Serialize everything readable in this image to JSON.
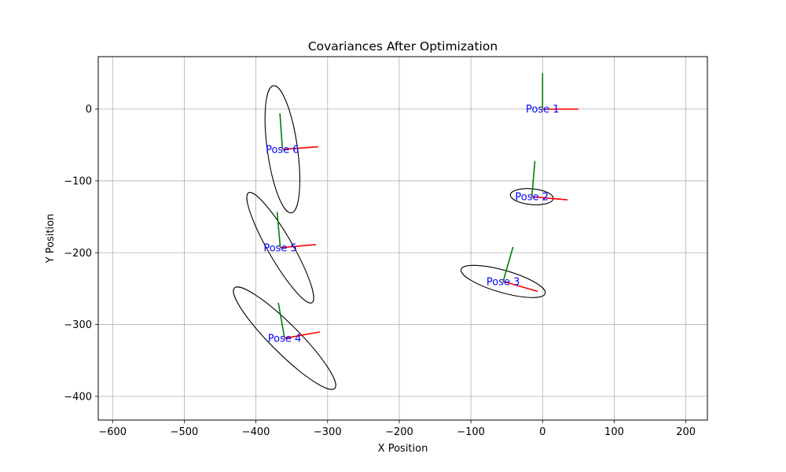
{
  "chart_data": {
    "type": "scatter",
    "title": "Covariances After Optimization",
    "xlabel": "X Position",
    "ylabel": "Y Position",
    "xlim": [
      -620,
      230
    ],
    "ylim": [
      -433,
      73
    ],
    "xticks": [
      -600,
      -500,
      -400,
      -300,
      -200,
      -100,
      0,
      100,
      200
    ],
    "yticks": [
      -400,
      -300,
      -200,
      -100,
      0
    ],
    "grid": true,
    "colors": {
      "x_axis_arrow": "#ff0000",
      "y_axis_arrow": "#008000",
      "ellipse": "#000000",
      "label": "#0000ff",
      "grid": "#b0b0b0"
    },
    "poses": [
      {
        "label": "Pose 1",
        "x": 0,
        "y": 0,
        "theta_deg": 0,
        "arrow_length": 50,
        "ellipse": {
          "width": 0,
          "height": 0,
          "angle_deg": 0
        }
      },
      {
        "label": "Pose 2",
        "x": -15,
        "y": -122,
        "theta_deg": -5,
        "arrow_length": 50,
        "ellipse": {
          "width": 60,
          "height": 22,
          "angle_deg": -5
        }
      },
      {
        "label": "Pose 3",
        "x": -55,
        "y": -240,
        "theta_deg": -16,
        "arrow_length": 50,
        "ellipse": {
          "width": 122,
          "height": 31,
          "angle_deg": -16
        }
      },
      {
        "label": "Pose 4",
        "x": -360,
        "y": -319,
        "theta_deg": 10,
        "arrow_length": 50,
        "ellipse": {
          "width": 198,
          "height": 40,
          "angle_deg": -45
        }
      },
      {
        "label": "Pose 5",
        "x": -366,
        "y": -193,
        "theta_deg": 5,
        "arrow_length": 50,
        "ellipse": {
          "width": 177,
          "height": 34,
          "angle_deg": -60
        }
      },
      {
        "label": "Pose 6",
        "x": -363,
        "y": -56,
        "theta_deg": 4,
        "arrow_length": 50,
        "ellipse": {
          "width": 179,
          "height": 42,
          "angle_deg": -82
        }
      }
    ]
  }
}
